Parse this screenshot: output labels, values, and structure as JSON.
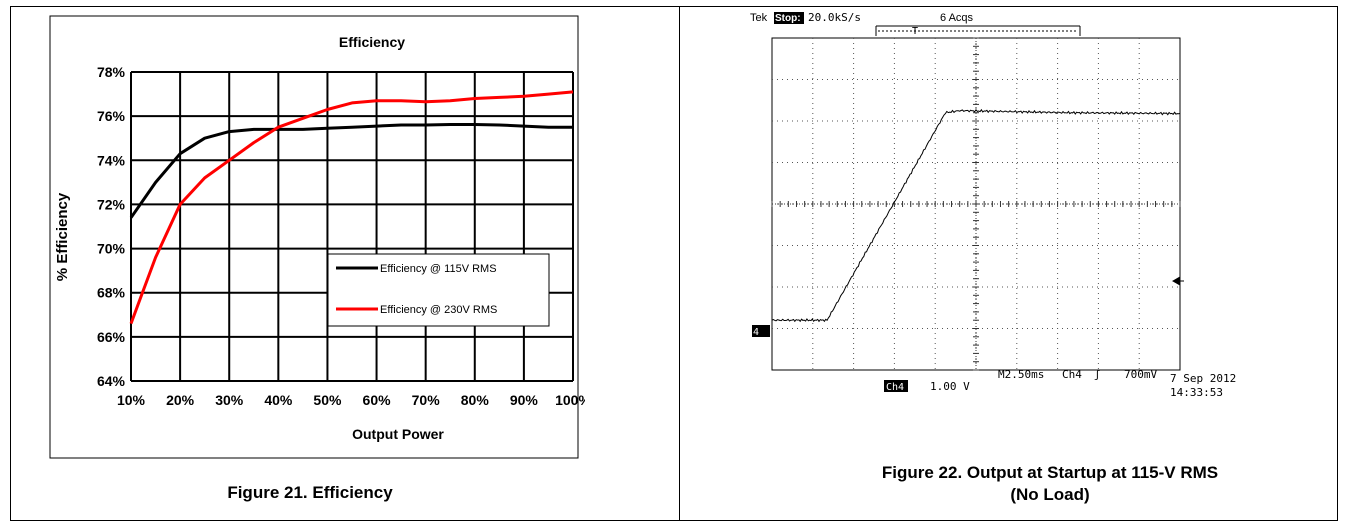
{
  "left_panel": {
    "caption": "Figure 21. Efficiency"
  },
  "right_panel": {
    "caption_line1": "Figure 22. Output at Startup at 115-V RMS",
    "caption_line2": "(No Load)",
    "scope": {
      "brand": "Tek",
      "state": "Stop:",
      "sample_rate": "20.0kS/s",
      "acquisitions": "6 Acqs",
      "trigger_marker": "T",
      "channel_marker": "4",
      "channel_label": "Ch4",
      "channel_scale": "1.00 V",
      "timebase": "M2.50ms",
      "trigger_source": "Ch4",
      "trigger_slope": "ʃ",
      "trigger_level": "700mV",
      "date": "7 Sep 2012",
      "time": "14:33:53",
      "trace_points_div": [
        [
          0,
          1.2
        ],
        [
          1.35,
          1.2
        ],
        [
          4.25,
          6.2
        ],
        [
          4.6,
          6.25
        ],
        [
          7.3,
          6.2
        ],
        [
          10,
          6.18
        ]
      ]
    }
  },
  "chart_data": [
    {
      "type": "line",
      "title": "Efficiency",
      "xlabel": "Output Power",
      "ylabel": "% Efficiency",
      "categories": [
        "10%",
        "20%",
        "30%",
        "40%",
        "50%",
        "60%",
        "70%",
        "80%",
        "90%",
        "100%"
      ],
      "xlim": [
        10,
        100
      ],
      "ylim": [
        64,
        78
      ],
      "yticks": [
        "64%",
        "66%",
        "68%",
        "70%",
        "72%",
        "74%",
        "76%",
        "78%"
      ],
      "grid": true,
      "legend_position": "lower-right",
      "series": [
        {
          "name": "Efficiency @ 115V RMS",
          "color": "#000000",
          "x": [
            10,
            15,
            20,
            25,
            30,
            35,
            40,
            45,
            50,
            55,
            60,
            65,
            70,
            75,
            80,
            85,
            90,
            95,
            100
          ],
          "y": [
            71.4,
            73.0,
            74.3,
            75.0,
            75.3,
            75.4,
            75.4,
            75.4,
            75.45,
            75.5,
            75.55,
            75.6,
            75.6,
            75.62,
            75.62,
            75.6,
            75.55,
            75.5,
            75.5
          ]
        },
        {
          "name": "Efficiency @ 230V RMS",
          "color": "#ff0000",
          "x": [
            10,
            12,
            15,
            20,
            25,
            30,
            35,
            40,
            45,
            50,
            55,
            60,
            65,
            70,
            75,
            80,
            85,
            90,
            95,
            100
          ],
          "y": [
            66.6,
            67.8,
            69.6,
            72.0,
            73.2,
            74.0,
            74.8,
            75.5,
            75.9,
            76.3,
            76.6,
            76.7,
            76.7,
            76.65,
            76.7,
            76.8,
            76.85,
            76.9,
            77.0,
            77.1
          ]
        }
      ]
    }
  ]
}
